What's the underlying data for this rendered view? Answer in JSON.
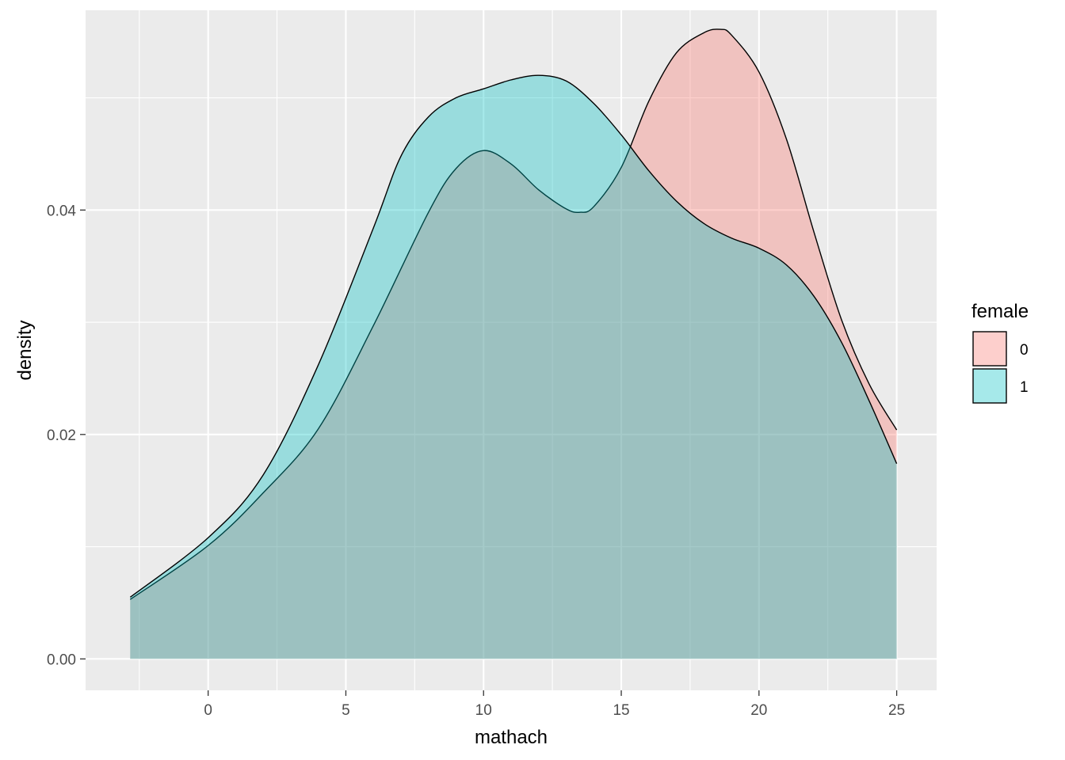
{
  "chart_data": {
    "type": "area",
    "subtype": "density",
    "xlabel": "mathach",
    "ylabel": "density",
    "xlim": [
      -4.45,
      26.45
    ],
    "ylim": [
      -0.0028,
      0.0578
    ],
    "x_ticks": [
      0,
      5,
      10,
      15,
      20,
      25
    ],
    "x_tick_labels": [
      "0",
      "5",
      "10",
      "15",
      "20",
      "25"
    ],
    "y_ticks": [
      0.0,
      0.02,
      0.04
    ],
    "y_tick_labels": [
      "0.00",
      "0.02",
      "0.04"
    ],
    "grid": true,
    "legend": {
      "title": "female",
      "placement": "right"
    },
    "series": [
      {
        "name": "0",
        "color": "#F8766D",
        "fill_opacity": 0.35,
        "x": [
          -2.83,
          0,
          2,
          4,
          6,
          8,
          9,
          10,
          11,
          12,
          13,
          13.5,
          14,
          15,
          16,
          17,
          18,
          18.6,
          19,
          20,
          21,
          22,
          23,
          24,
          25
        ],
        "y": [
          0.0053,
          0.0101,
          0.0148,
          0.0205,
          0.0297,
          0.0398,
          0.0437,
          0.0453,
          0.0441,
          0.0418,
          0.0401,
          0.0398,
          0.0403,
          0.0438,
          0.0497,
          0.054,
          0.0558,
          0.0561,
          0.0556,
          0.0523,
          0.0463,
          0.038,
          0.0302,
          0.0245,
          0.0204
        ]
      },
      {
        "name": "1",
        "color": "#00BFC4",
        "fill_opacity": 0.35,
        "x": [
          -2.83,
          0,
          2,
          4,
          6,
          7,
          8,
          9,
          10,
          11,
          12,
          13,
          14,
          15,
          16,
          17,
          18,
          19,
          20,
          21,
          22,
          23,
          24,
          25
        ],
        "y": [
          0.0055,
          0.0108,
          0.0164,
          0.0262,
          0.0384,
          0.0448,
          0.0483,
          0.05,
          0.0508,
          0.0516,
          0.052,
          0.0515,
          0.0495,
          0.0467,
          0.0435,
          0.0408,
          0.0388,
          0.0375,
          0.0366,
          0.0351,
          0.0323,
          0.0282,
          0.023,
          0.0174
        ]
      }
    ]
  }
}
